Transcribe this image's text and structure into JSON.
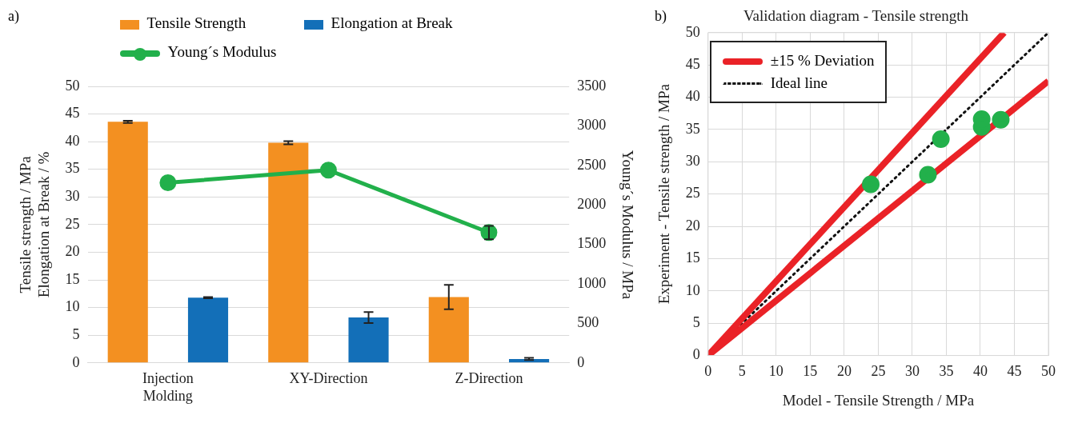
{
  "chart_data": [
    {
      "type": "bar",
      "annotations": [
        "a)"
      ],
      "categories": [
        "Injection Molding",
        "XY-Direction",
        "Z-Direction"
      ],
      "ylabel": "Tensile strength / MPa\nElongation at Break / %",
      "y2label": "Young´s Modulus / MPa",
      "ylim": [
        0,
        50
      ],
      "yticks": [
        0,
        5,
        10,
        15,
        20,
        25,
        30,
        35,
        40,
        45,
        50
      ],
      "y2lim": [
        0,
        3500
      ],
      "y2ticks": [
        0,
        500,
        1000,
        1500,
        2000,
        2500,
        3000,
        3500
      ],
      "grid": "y",
      "legend": "top",
      "series": [
        {
          "name": "Tensile Strength",
          "color": "#f39021",
          "values": [
            43.6,
            39.8,
            11.9
          ],
          "errors": [
            0.2,
            0.3,
            2.2
          ]
        },
        {
          "name": "Elongation at Break",
          "color": "#136fb8",
          "values": [
            11.8,
            8.2,
            0.7
          ],
          "errors": [
            0.1,
            1,
            0.2
          ]
        },
        {
          "name": "Young´s Modulus",
          "type": "line",
          "axis": "y2",
          "marker": "circle",
          "color": "#22b04b",
          "values": [
            2280,
            2440,
            1650
          ],
          "errors": [
            null,
            null,
            85
          ]
        }
      ]
    },
    {
      "type": "scatter",
      "title": "Validation diagram - Tensile strength",
      "annotations": [
        "b)"
      ],
      "xlabel": "Model - Tensile Strength / MPa",
      "ylabel": "Experiment - Tensile strength / MPa",
      "xlim": [
        0,
        50
      ],
      "xticks": [
        0,
        5,
        10,
        15,
        20,
        25,
        30,
        35,
        40,
        45,
        50
      ],
      "ylim": [
        0,
        50
      ],
      "yticks": [
        0,
        5,
        10,
        15,
        20,
        25,
        30,
        35,
        40,
        45,
        50
      ],
      "grid": true,
      "legend": "top left",
      "series": [
        {
          "type": "scatter",
          "marker": "circle",
          "color": "#22b04b",
          "x": [
            32.3,
            23.9,
            34.2,
            40.2,
            40.2,
            43.0
          ],
          "values": [
            28.0,
            26.5,
            33.5,
            35.4,
            36.6,
            36.5
          ]
        },
        {
          "name": "±15 % Deviation",
          "type": "line",
          "marker": "none",
          "color": "#ea2227",
          "x": [
            0,
            50
          ],
          "values": [
            0,
            42.5
          ]
        },
        {
          "type": "line",
          "marker": "none",
          "color": "#ea2227",
          "x": [
            0,
            43.5
          ],
          "values": [
            0,
            50
          ]
        },
        {
          "name": "Ideal line",
          "type": "line",
          "marker": "none",
          "line_style": "dotted",
          "color": "#111111",
          "x": [
            0,
            50
          ],
          "values": [
            0,
            50
          ]
        }
      ]
    }
  ]
}
